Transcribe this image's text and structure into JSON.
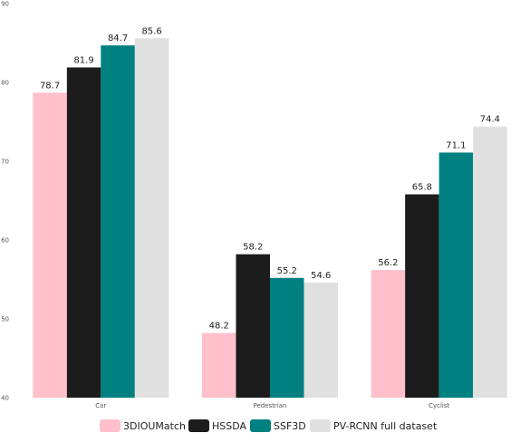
{
  "chart_data": {
    "type": "bar",
    "categories": [
      "Car",
      "Pedestrian",
      "Cyclist"
    ],
    "series": [
      {
        "name": "3DIOUMatch",
        "color": "#ffc0cb",
        "values": [
          78.7,
          48.2,
          56.2
        ]
      },
      {
        "name": "HSSDA",
        "color": "#1c1c1c",
        "values": [
          81.9,
          58.2,
          65.8
        ]
      },
      {
        "name": "SSF3D",
        "color": "#008080",
        "values": [
          84.7,
          55.2,
          71.1
        ]
      },
      {
        "name": "PV-RCNN full dataset",
        "color": "#e0e0e0",
        "values": [
          85.6,
          54.6,
          74.4
        ]
      }
    ],
    "title": "",
    "xlabel": "",
    "ylabel": "",
    "ylim": [
      40,
      90
    ],
    "yticks": [
      40,
      50,
      60,
      70,
      80,
      90
    ],
    "grid": false,
    "legend_position": "bottom"
  }
}
